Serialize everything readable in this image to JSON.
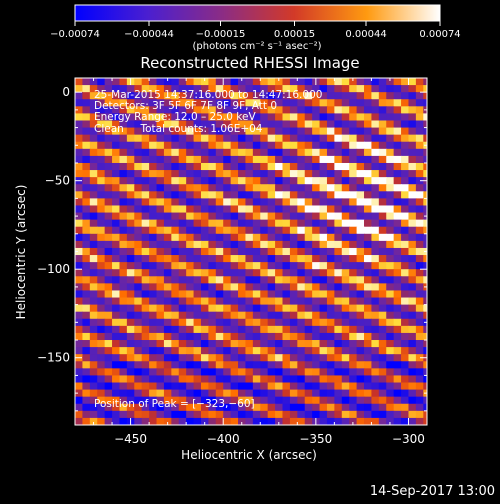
{
  "chart_data": {
    "type": "heatmap",
    "title": "Reconstructed RHESSI Image",
    "xlabel": "Heliocentric X (arcsec)",
    "ylabel": "Heliocentric Y (arcsec)",
    "xlim": [
      -480,
      -290
    ],
    "ylim": [
      -188,
      8
    ],
    "xticks": [
      -450,
      -400,
      -350,
      -300
    ],
    "xtick_labels": [
      "−450",
      "−400",
      "−350",
      "−300"
    ],
    "yticks": [
      0,
      -50,
      -100,
      -150
    ],
    "ytick_labels": [
      "0",
      "−50",
      "−100",
      "−150"
    ],
    "colorbar": {
      "range": [
        -0.00074,
        0.00074
      ],
      "tick_values": [
        -0.00074,
        -0.00044,
        -0.00015,
        0.00015,
        0.00044,
        0.00074
      ],
      "tick_labels": [
        "−0.00074",
        "−0.00044",
        "−0.00015",
        "0.00015",
        "0.00044",
        "0.00074"
      ],
      "unit_label": "(photons cm⁻² s⁻¹ asec⁻²)",
      "colormap": [
        "#0000ff",
        "#6a1fb0",
        "#8b2a7a",
        "#c83a2a",
        "#ff6a00",
        "#ffd23a",
        "#ffffff"
      ]
    },
    "annotations": {
      "time": "25-Mar-2015 14:37:16.000 to 14:47:16.000",
      "detectors": "Detectors: 3F 5F 6F 7F 8F 9F, Att 0",
      "energy": "Energy Range: 12.0 – 25.0 keV",
      "clean": "Clean     Total counts: 1.06E+04",
      "peak": "Position of Peak = [−323,−60]"
    },
    "peak": {
      "x": -323,
      "y": -60
    },
    "grid": {
      "x_start": -480,
      "x_end": -290,
      "y_start": 8,
      "y_end": -188,
      "step": 4
    }
  },
  "footer": {
    "timestamp": "14-Sep-2017 13:00"
  }
}
